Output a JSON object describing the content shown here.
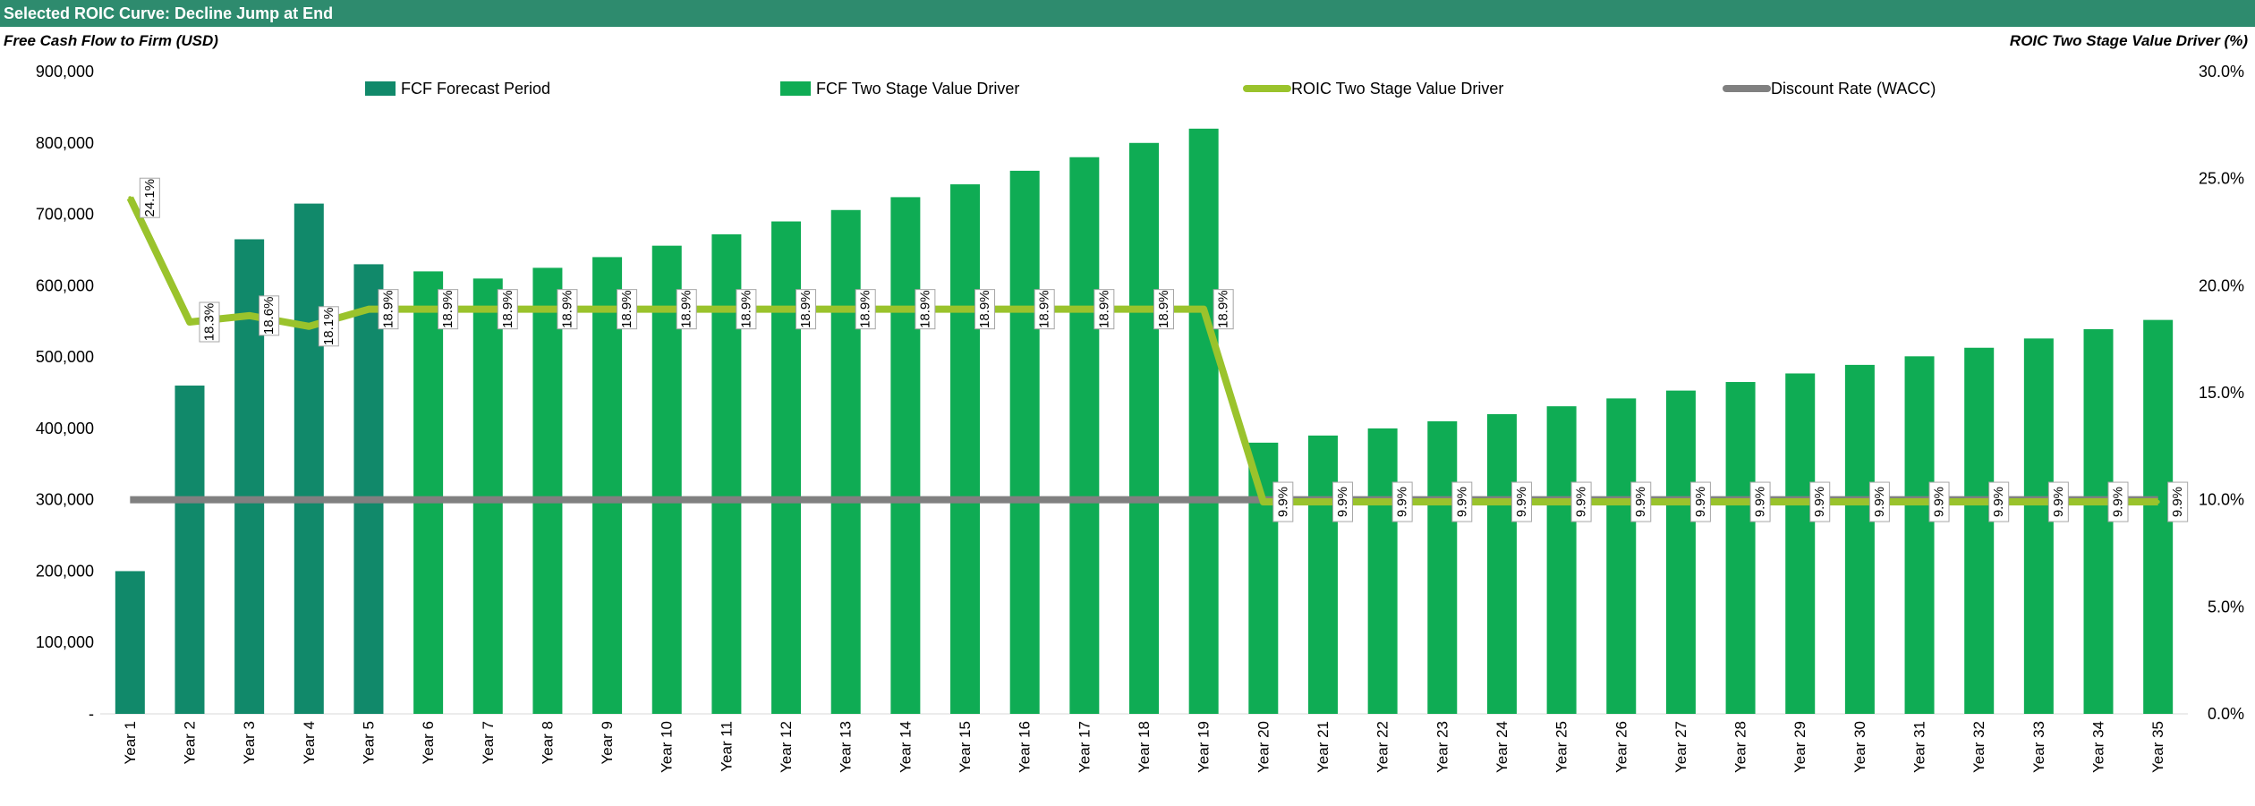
{
  "title": "Selected ROIC Curve: Decline Jump at End",
  "chart_data": {
    "type": "bar",
    "categories": [
      "Year 1",
      "Year 2",
      "Year 3",
      "Year 4",
      "Year 5",
      "Year 6",
      "Year 7",
      "Year 8",
      "Year 9",
      "Year 10",
      "Year 11",
      "Year 12",
      "Year 13",
      "Year 14",
      "Year 15",
      "Year 16",
      "Year 17",
      "Year 18",
      "Year 19",
      "Year 20",
      "Year 21",
      "Year 22",
      "Year 23",
      "Year 24",
      "Year 25",
      "Year 26",
      "Year 27",
      "Year 28",
      "Year 29",
      "Year 30",
      "Year 31",
      "Year 32",
      "Year 33",
      "Year 34",
      "Year 35"
    ],
    "ylabel_left": "Free Cash Flow to Firm (USD)",
    "ylabel_right": "ROIC Two Stage Value Driver (%)",
    "ylim_left": [
      0,
      900000
    ],
    "ylim_right": [
      0,
      30
    ],
    "y_ticks_left": [
      "-",
      "100,000",
      "200,000",
      "300,000",
      "400,000",
      "500,000",
      "600,000",
      "700,000",
      "800,000",
      "900,000"
    ],
    "y_ticks_right": [
      "0.0%",
      "5.0%",
      "10.0%",
      "15.0%",
      "20.0%",
      "25.0%",
      "30.0%"
    ],
    "legend_position": "top",
    "colors": {
      "forecast": "#11896a",
      "value_driver": "#0fac54",
      "roic": "#9ac32c",
      "wacc": "#808080"
    },
    "series": [
      {
        "name": "FCF Forecast Period",
        "kind": "bar",
        "axis": "left",
        "values": [
          200000,
          460000,
          665000,
          715000,
          630000,
          null,
          null,
          null,
          null,
          null,
          null,
          null,
          null,
          null,
          null,
          null,
          null,
          null,
          null,
          null,
          null,
          null,
          null,
          null,
          null,
          null,
          null,
          null,
          null,
          null,
          null,
          null,
          null,
          null,
          null
        ]
      },
      {
        "name": "FCF Two Stage Value Driver",
        "kind": "bar",
        "axis": "left",
        "values": [
          null,
          null,
          null,
          null,
          null,
          620000,
          610000,
          625000,
          640000,
          656000,
          672000,
          690000,
          706000,
          724000,
          742000,
          761000,
          780000,
          800000,
          820000,
          380000,
          390000,
          400000,
          410000,
          420000,
          431000,
          442000,
          453000,
          465000,
          477000,
          489000,
          501000,
          513000,
          526000,
          539000,
          552000
        ]
      },
      {
        "name": "ROIC Two Stage Value Driver",
        "kind": "line",
        "axis": "right",
        "values": [
          24.1,
          18.3,
          18.6,
          18.1,
          18.9,
          18.9,
          18.9,
          18.9,
          18.9,
          18.9,
          18.9,
          18.9,
          18.9,
          18.9,
          18.9,
          18.9,
          18.9,
          18.9,
          18.9,
          9.9,
          9.9,
          9.9,
          9.9,
          9.9,
          9.9,
          9.9,
          9.9,
          9.9,
          9.9,
          9.9,
          9.9,
          9.9,
          9.9,
          9.9,
          9.9
        ],
        "labels": [
          "24.1%",
          "18.3%",
          "18.6%",
          "18.1%",
          "18.9%",
          "18.9%",
          "18.9%",
          "18.9%",
          "18.9%",
          "18.9%",
          "18.9%",
          "18.9%",
          "18.9%",
          "18.9%",
          "18.9%",
          "18.9%",
          "18.9%",
          "18.9%",
          "18.9%",
          "9.9%",
          "9.9%",
          "9.9%",
          "9.9%",
          "9.9%",
          "9.9%",
          "9.9%",
          "9.9%",
          "9.9%",
          "9.9%",
          "9.9%",
          "9.9%",
          "9.9%",
          "9.9%",
          "9.9%",
          "9.9%"
        ]
      },
      {
        "name": "Discount Rate (WACC)",
        "kind": "line",
        "axis": "right",
        "values": [
          10.0,
          10.0,
          10.0,
          10.0,
          10.0,
          10.0,
          10.0,
          10.0,
          10.0,
          10.0,
          10.0,
          10.0,
          10.0,
          10.0,
          10.0,
          10.0,
          10.0,
          10.0,
          10.0,
          10.0,
          10.0,
          10.0,
          10.0,
          10.0,
          10.0,
          10.0,
          10.0,
          10.0,
          10.0,
          10.0,
          10.0,
          10.0,
          10.0,
          10.0,
          10.0
        ]
      }
    ]
  }
}
